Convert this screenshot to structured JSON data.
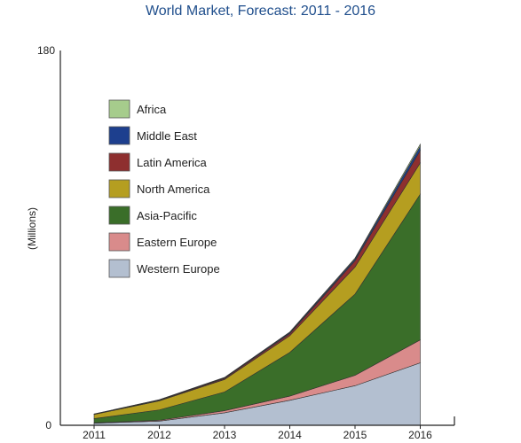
{
  "chart_data": {
    "type": "area",
    "title": "World Market, Forecast: 2011 - 2016",
    "xlabel": "",
    "ylabel": "(Millions)",
    "x": [
      "2011",
      "2012",
      "2013",
      "2014",
      "2015",
      "2016"
    ],
    "ylim": [
      0,
      180
    ],
    "yticks": [
      "0",
      "180"
    ],
    "stacked": true,
    "grid": false,
    "legend_position": "top-left",
    "series": [
      {
        "name": "Western Europe",
        "color": "#b3bfd0",
        "values": [
          1,
          2,
          6,
          12,
          19,
          30
        ]
      },
      {
        "name": "Eastern Europe",
        "color": "#d98b8b",
        "values": [
          0.2,
          0.4,
          1,
          2,
          5,
          11
        ]
      },
      {
        "name": "Asia-Pacific",
        "color": "#3a6e29",
        "values": [
          2,
          5,
          9,
          21,
          39,
          70
        ]
      },
      {
        "name": "North America",
        "color": "#b59e20",
        "values": [
          2,
          4.3,
          6,
          8,
          13,
          15
        ]
      },
      {
        "name": "Latin America",
        "color": "#8e2f2f",
        "values": [
          0.1,
          0.3,
          0.5,
          1,
          3,
          6
        ]
      },
      {
        "name": "Middle East",
        "color": "#1d3f8e",
        "values": [
          0.1,
          0.2,
          0.3,
          0.5,
          0.8,
          2
        ]
      },
      {
        "name": "Africa",
        "color": "#a6cc8c",
        "values": [
          0.05,
          0.1,
          0.2,
          0.3,
          0.5,
          1
        ]
      }
    ],
    "legend_order": [
      "Africa",
      "Middle East",
      "Latin America",
      "North America",
      "Asia-Pacific",
      "Eastern Europe",
      "Western Europe"
    ]
  }
}
